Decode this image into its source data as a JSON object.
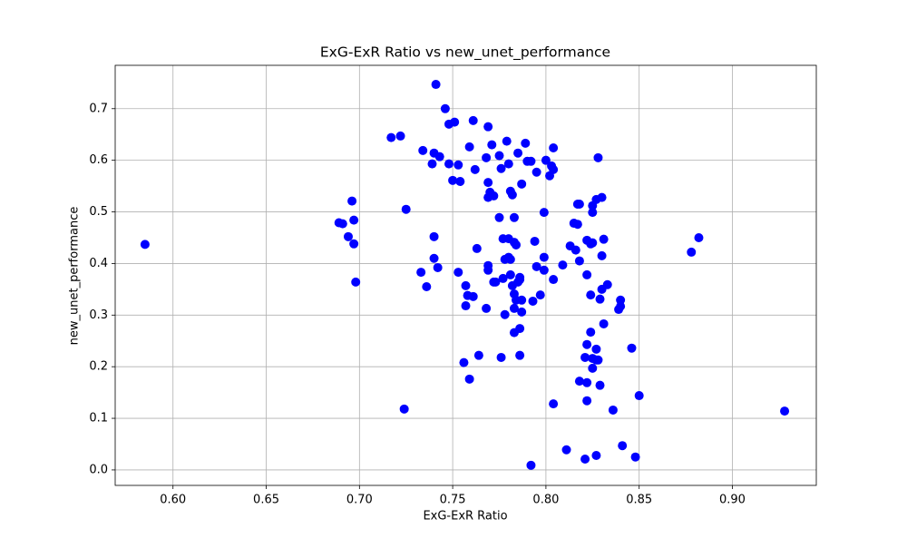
{
  "chart_data": {
    "type": "scatter",
    "title": "ExG-ExR Ratio vs new_unet_performance",
    "x_label": "ExG-ExR Ratio",
    "y_label": "new_unet_performance",
    "color": "#0000ff",
    "grid": true,
    "xlim": [
      0.569,
      0.945
    ],
    "ylim": [
      -0.03,
      0.784
    ],
    "xticks": [
      {
        "value": 0.6,
        "label": "0.60"
      },
      {
        "value": 0.65,
        "label": "0.65"
      },
      {
        "value": 0.7,
        "label": "0.70"
      },
      {
        "value": 0.75,
        "label": "0.75"
      },
      {
        "value": 0.8,
        "label": "0.80"
      },
      {
        "value": 0.85,
        "label": "0.85"
      },
      {
        "value": 0.9,
        "label": "0.90"
      }
    ],
    "yticks": [
      {
        "value": 0,
        "label": "0.0"
      },
      0.1,
      0.2,
      0.3,
      0.4,
      0.5,
      0.6,
      0.7
    ],
    "x": [
      0.585,
      0.689,
      0.691,
      0.694,
      0.696,
      0.697,
      0.697,
      0.698,
      0.717,
      0.722,
      0.725,
      0.724,
      0.734,
      0.733,
      0.736,
      0.739,
      0.74,
      0.74,
      0.74,
      0.741,
      0.742,
      0.743,
      0.746,
      0.748,
      0.748,
      0.751,
      0.75,
      0.753,
      0.754,
      0.753,
      0.756,
      0.757,
      0.758,
      0.757,
      0.759,
      0.759,
      0.761,
      0.761,
      0.762,
      0.763,
      0.764,
      0.768,
      0.768,
      0.769,
      0.769,
      0.769,
      0.769,
      0.77,
      0.771,
      0.769,
      0.772,
      0.772,
      0.773,
      0.775,
      0.775,
      0.776,
      0.776,
      0.777,
      0.777,
      0.778,
      0.778,
      0.779,
      0.78,
      0.78,
      0.78,
      0.781,
      0.781,
      0.781,
      0.782,
      0.782,
      0.783,
      0.783,
      0.783,
      0.783,
      0.783,
      0.784,
      0.784,
      0.785,
      0.785,
      0.786,
      0.786,
      0.786,
      0.786,
      0.787,
      0.787,
      0.787,
      0.789,
      0.79,
      0.792,
      0.792,
      0.793,
      0.794,
      0.795,
      0.795,
      0.797,
      0.799,
      0.799,
      0.799,
      0.8,
      0.802,
      0.803,
      0.804,
      0.804,
      0.804,
      0.804,
      0.809,
      0.811,
      0.813,
      0.815,
      0.816,
      0.817,
      0.818,
      0.818,
      0.818,
      0.817,
      0.821,
      0.821,
      0.822,
      0.822,
      0.822,
      0.822,
      0.822,
      0.824,
      0.824,
      0.825,
      0.824,
      0.825,
      0.825,
      0.825,
      0.825,
      0.827,
      0.827,
      0.827,
      0.828,
      0.828,
      0.827,
      0.829,
      0.829,
      0.83,
      0.83,
      0.83,
      0.831,
      0.831,
      0.833,
      0.836,
      0.839,
      0.84,
      0.84,
      0.841,
      0.846,
      0.848,
      0.85,
      0.878,
      0.882,
      0.928
    ],
    "values": [
      0.437,
      0.479,
      0.477,
      0.452,
      0.521,
      0.484,
      0.438,
      0.364,
      0.644,
      0.647,
      0.505,
      0.118,
      0.619,
      0.383,
      0.355,
      0.593,
      0.614,
      0.452,
      0.41,
      0.747,
      0.392,
      0.607,
      0.7,
      0.67,
      0.593,
      0.674,
      0.561,
      0.591,
      0.559,
      0.383,
      0.208,
      0.357,
      0.338,
      0.318,
      0.176,
      0.626,
      0.336,
      0.677,
      0.582,
      0.429,
      0.222,
      0.605,
      0.313,
      0.665,
      0.387,
      0.396,
      0.557,
      0.538,
      0.63,
      0.528,
      0.364,
      0.531,
      0.364,
      0.609,
      0.489,
      0.218,
      0.584,
      0.448,
      0.371,
      0.408,
      0.301,
      0.637,
      0.593,
      0.448,
      0.412,
      0.54,
      0.378,
      0.408,
      0.533,
      0.357,
      0.441,
      0.341,
      0.313,
      0.266,
      0.489,
      0.436,
      0.329,
      0.364,
      0.614,
      0.369,
      0.222,
      0.373,
      0.274,
      0.329,
      0.554,
      0.306,
      0.633,
      0.598,
      0.009,
      0.598,
      0.327,
      0.443,
      0.577,
      0.394,
      0.339,
      0.499,
      0.412,
      0.387,
      0.6,
      0.57,
      0.589,
      0.582,
      0.624,
      0.369,
      0.128,
      0.397,
      0.039,
      0.434,
      0.478,
      0.426,
      0.515,
      0.172,
      0.405,
      0.515,
      0.476,
      0.218,
      0.021,
      0.378,
      0.243,
      0.134,
      0.169,
      0.445,
      0.438,
      0.339,
      0.44,
      0.267,
      0.216,
      0.197,
      0.512,
      0.499,
      0.028,
      0.213,
      0.234,
      0.605,
      0.213,
      0.524,
      0.164,
      0.331,
      0.35,
      0.528,
      0.415,
      0.447,
      0.283,
      0.359,
      0.116,
      0.311,
      0.317,
      0.329,
      0.047,
      0.236,
      0.025,
      0.144,
      0.422,
      0.45,
      0.114
    ]
  }
}
